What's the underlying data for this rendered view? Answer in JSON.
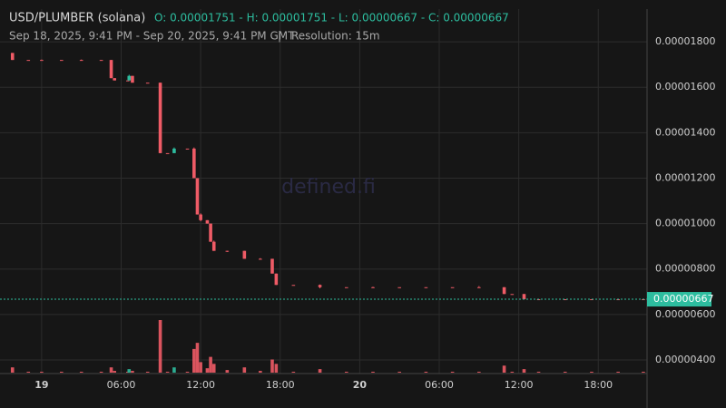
{
  "chart_data": {
    "type": "candlestick",
    "title": "USD/PLUMBER (solana)",
    "ohlc": "O: 0.00001751 - H: 0.00001751 - L: 0.00000667 - C: 0.00000667",
    "subtitle": "Sep 18, 2025, 9:41 PM - Sep 20, 2025, 9:41 PM GMT",
    "separator": "|",
    "resolution": "Resolution: 15m",
    "watermark": "defined.fi",
    "up_color": "#2dbd9f",
    "down_color": "#ef5b66",
    "grid": true,
    "x": [
      -2.2,
      -1,
      0,
      1.5,
      3,
      4.5,
      5.25,
      5.5,
      6.5,
      6.6,
      6.85,
      8,
      8.95,
      9.5,
      10,
      11,
      11.5,
      11.75,
      12,
      12.5,
      12.75,
      13,
      14,
      15.3,
      16.5,
      17.4,
      17.7,
      19,
      21,
      23,
      25,
      27,
      29,
      31,
      33,
      34.9,
      35.5,
      36.4,
      37.5,
      39.5,
      41.5,
      43.5,
      45.4
    ],
    "open": [
      1.751e-05,
      1.72e-05,
      1.72e-05,
      1.72e-05,
      1.72e-05,
      1.72e-05,
      1.72e-05,
      1.64e-05,
      1.63e-05,
      1.63e-05,
      1.65e-05,
      1.62e-05,
      1.62e-05,
      1.31e-05,
      1.31e-05,
      1.33e-05,
      1.33e-05,
      1.2e-05,
      1.04e-05,
      1.015e-05,
      1e-05,
      9.2e-06,
      8.8e-06,
      8.8e-06,
      8.45e-06,
      8.45e-06,
      7.8e-06,
      7.3e-06,
      7.3e-06,
      7.2e-06,
      7.2e-06,
      7.2e-06,
      7.2e-06,
      7.2e-06,
      7.2e-06,
      7.2e-06,
      6.9e-06,
      6.9e-06,
      6.67e-06,
      6.67e-06,
      6.67e-06,
      6.67e-06,
      6.67e-06
    ],
    "high": [
      1.751e-05,
      1.72e-05,
      1.722e-05,
      1.72e-05,
      1.722e-05,
      1.72e-05,
      1.72e-05,
      1.64e-05,
      1.63e-05,
      1.655e-05,
      1.65e-05,
      1.62e-05,
      1.62e-05,
      1.31e-05,
      1.335e-05,
      1.33e-05,
      1.335e-05,
      1.2e-05,
      1.045e-05,
      1.015e-05,
      1e-05,
      9.25e-06,
      8.8e-06,
      8.8e-06,
      8.48e-06,
      8.45e-06,
      7.8e-06,
      7.3e-06,
      7.32e-06,
      7.2e-06,
      7.22e-06,
      7.2e-06,
      7.2e-06,
      7.2e-06,
      7.25e-06,
      7.2e-06,
      6.9e-06,
      6.9e-06,
      6.67e-06,
      6.67e-06,
      6.67e-06,
      6.67e-06,
      6.67e-06
    ],
    "low": [
      1.72e-05,
      1.72e-05,
      1.72e-05,
      1.72e-05,
      1.718e-05,
      1.72e-05,
      1.64e-05,
      1.63e-05,
      1.63e-05,
      1.63e-05,
      1.62e-05,
      1.62e-05,
      1.31e-05,
      1.31e-05,
      1.31e-05,
      1.33e-05,
      1.2e-05,
      1.04e-05,
      1.01e-05,
      1e-05,
      9.2e-06,
      8.8e-06,
      8.75e-06,
      8.45e-06,
      8.43e-06,
      7.8e-06,
      7.3e-06,
      7.3e-06,
      7.15e-06,
      7.2e-06,
      7.18e-06,
      7.2e-06,
      7.2e-06,
      7.2e-06,
      7.2e-06,
      6.9e-06,
      6.9e-06,
      6.67e-06,
      6.67e-06,
      6.67e-06,
      6.67e-06,
      6.67e-06,
      6.67e-06
    ],
    "close": [
      1.72e-05,
      1.72e-05,
      1.72e-05,
      1.72e-05,
      1.718e-05,
      1.72e-05,
      1.64e-05,
      1.63e-05,
      1.63e-05,
      1.65e-05,
      1.62e-05,
      1.62e-05,
      1.31e-05,
      1.31e-05,
      1.33e-05,
      1.33e-05,
      1.2e-05,
      1.04e-05,
      1.015e-05,
      1e-05,
      9.2e-06,
      8.8e-06,
      8.8e-06,
      8.45e-06,
      8.45e-06,
      7.8e-06,
      7.3e-06,
      7.3e-06,
      7.2e-06,
      7.2e-06,
      7.2e-06,
      7.2e-06,
      7.2e-06,
      7.2e-06,
      7.2e-06,
      6.9e-06,
      6.9e-06,
      6.67e-06,
      6.67e-06,
      6.67e-06,
      6.67e-06,
      6.67e-06,
      6.67e-06
    ],
    "volume": [
      6,
      1,
      1,
      1,
      1,
      1,
      6,
      2,
      1,
      4,
      2,
      1,
      60,
      1,
      6,
      1,
      27,
      34,
      12,
      5,
      18,
      10,
      3,
      6,
      2,
      15,
      10,
      1,
      4,
      1,
      1,
      1,
      1,
      1,
      1,
      8,
      1,
      4,
      1,
      1,
      1,
      1,
      1
    ],
    "xlim": [
      -2.32,
      45.68
    ],
    "xticks": [
      {
        "value": 0,
        "label": "19"
      },
      {
        "value": 6,
        "label": "06:00"
      },
      {
        "value": 12,
        "label": "12:00"
      },
      {
        "value": 18,
        "label": "18:00"
      },
      {
        "value": 24,
        "label": "20"
      },
      {
        "value": 30,
        "label": "06:00"
      },
      {
        "value": 36,
        "label": "12:00"
      },
      {
        "value": 42,
        "label": "18:00"
      }
    ],
    "ylim": [
      3.4e-06,
      1.944e-05
    ],
    "yticks": [
      {
        "value": 4e-06,
        "label": "0.00000400"
      },
      {
        "value": 6e-06,
        "label": "0.00000600"
      },
      {
        "value": 8e-06,
        "label": "0.00000800"
      },
      {
        "value": 1e-05,
        "label": "0.00001000"
      },
      {
        "value": 1.2e-05,
        "label": "0.00001200"
      },
      {
        "value": 1.4e-05,
        "label": "0.00001400"
      },
      {
        "value": 1.6e-05,
        "label": "0.00001600"
      },
      {
        "value": 1.8e-05,
        "label": "0.00001800"
      }
    ],
    "last_price": {
      "value": 6.67e-06,
      "label": "0.00000667"
    }
  }
}
